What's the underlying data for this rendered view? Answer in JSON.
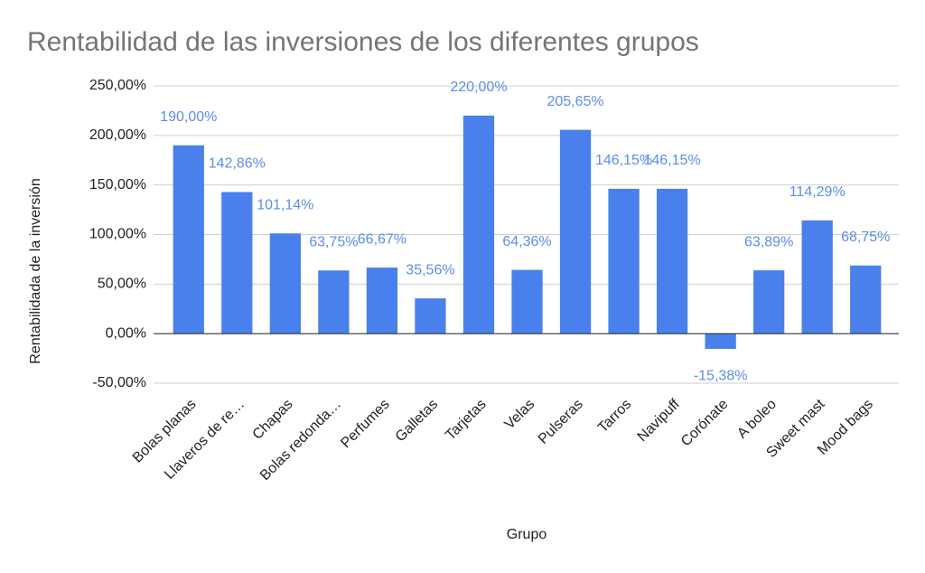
{
  "chart_data": {
    "type": "bar",
    "title": "Rentabilidad de las inversiones de los diferentes grupos",
    "x_label": "Grupo",
    "y_label": "Rentabilidada de la inversión",
    "categories": [
      "Bolas planas",
      "Llaveros de re…",
      "Chapas",
      "Bolas redonda…",
      "Perfumes",
      "Galletas",
      "Tarjetas",
      "Velas",
      "Pulseras",
      "Tarros",
      "Navipuff",
      "Corónate",
      "A boleo",
      "Sweet mast",
      "Mood bags"
    ],
    "values": [
      190.0,
      142.86,
      101.14,
      63.75,
      66.67,
      35.56,
      220.0,
      64.36,
      205.65,
      146.15,
      146.15,
      -15.38,
      63.89,
      114.29,
      68.75
    ],
    "value_labels": [
      "190,00%",
      "142,86%",
      "101,14%",
      "63,75%",
      "66,67%",
      "35,56%",
      "220,00%",
      "64,36%",
      "205,65%",
      "146,15%",
      "146,15%",
      "-15,38%",
      "63,89%",
      "114,29%",
      "68,75%"
    ],
    "color": "#4a80ec",
    "ylim": [
      -50,
      250
    ],
    "yticks": [
      {
        "value": -50,
        "label": "-50,00%"
      },
      {
        "value": 0,
        "label": "0,00%"
      },
      {
        "value": 50,
        "label": "50,00%"
      },
      {
        "value": 100,
        "label": "100,00%"
      },
      {
        "value": 150,
        "label": "150,00%"
      },
      {
        "value": 200,
        "label": "200,00%"
      },
      {
        "value": 250,
        "label": "250,00%"
      }
    ],
    "grid": true
  }
}
